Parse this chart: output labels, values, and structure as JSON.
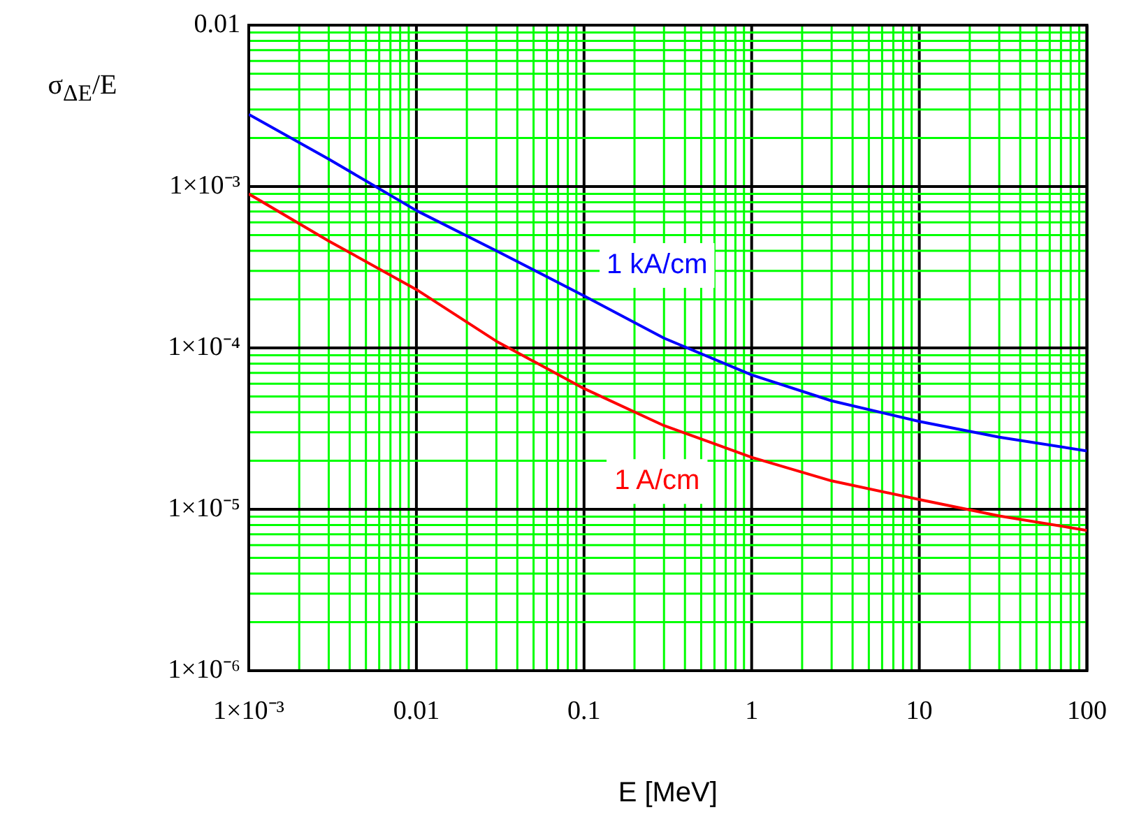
{
  "chart_data": {
    "type": "line",
    "xlabel": "E [MeV]",
    "ylabel": "σ$_{ΔE}$/E",
    "log": "xy",
    "grid": true,
    "legend": false,
    "marker": "none",
    "line_style": "solid",
    "x": [
      0.001,
      0.003,
      0.01,
      0.03,
      0.1,
      0.3,
      1,
      3,
      10,
      30,
      100
    ],
    "xlim": [
      0.001,
      100
    ],
    "xticks": [
      {
        "value": 0.001,
        "label": "1×10⁻³"
      },
      {
        "value": 0.002,
        "label": null
      },
      {
        "value": 0.003,
        "label": null
      },
      {
        "value": 0.004,
        "label": null
      },
      {
        "value": 0.005,
        "label": null
      },
      {
        "value": 0.006,
        "label": null
      },
      {
        "value": 0.007,
        "label": null
      },
      {
        "value": 0.008,
        "label": null
      },
      {
        "value": 0.009,
        "label": null
      },
      0.01,
      {
        "value": 0.02,
        "label": null
      },
      {
        "value": 0.03,
        "label": null
      },
      {
        "value": 0.04,
        "label": null
      },
      {
        "value": 0.05,
        "label": null
      },
      {
        "value": 0.06,
        "label": null
      },
      {
        "value": 0.07,
        "label": null
      },
      {
        "value": 0.08,
        "label": null
      },
      {
        "value": 0.09,
        "label": null
      },
      0.1,
      {
        "value": 0.2,
        "label": null
      },
      {
        "value": 0.3,
        "label": null
      },
      {
        "value": 0.4,
        "label": null
      },
      {
        "value": 0.5,
        "label": null
      },
      {
        "value": 0.6,
        "label": null
      },
      {
        "value": 0.7,
        "label": null
      },
      {
        "value": 0.8,
        "label": null
      },
      {
        "value": 0.9,
        "label": null
      },
      1,
      {
        "value": 2,
        "label": null
      },
      {
        "value": 3,
        "label": null
      },
      {
        "value": 4,
        "label": null
      },
      {
        "value": 5,
        "label": null
      },
      {
        "value": 6,
        "label": null
      },
      {
        "value": 7,
        "label": null
      },
      {
        "value": 8,
        "label": null
      },
      {
        "value": 9,
        "label": null
      },
      10,
      {
        "value": 20,
        "label": null
      },
      {
        "value": 30,
        "label": null
      },
      {
        "value": 40,
        "label": null
      },
      {
        "value": 50,
        "label": null
      },
      {
        "value": 60,
        "label": null
      },
      {
        "value": 70,
        "label": null
      },
      {
        "value": 80,
        "label": null
      },
      {
        "value": 90,
        "label": null
      },
      100
    ],
    "ylim": [
      1e-06,
      0.01
    ],
    "yticks": [
      {
        "value": 1e-06,
        "label": "1×10⁻⁶"
      },
      {
        "value": 2e-06,
        "label": null
      },
      {
        "value": 3e-06,
        "label": null
      },
      {
        "value": 4e-06,
        "label": null
      },
      {
        "value": 5e-06,
        "label": null
      },
      {
        "value": 6e-06,
        "label": null
      },
      {
        "value": 7e-06,
        "label": null
      },
      {
        "value": 8e-06,
        "label": null
      },
      {
        "value": 9e-06,
        "label": null
      },
      {
        "value": 1e-05,
        "label": "1×10⁻⁵"
      },
      {
        "value": 2e-05,
        "label": null
      },
      {
        "value": 3e-05,
        "label": null
      },
      {
        "value": 4e-05,
        "label": null
      },
      {
        "value": 5e-05,
        "label": null
      },
      {
        "value": 6e-05,
        "label": null
      },
      {
        "value": 7e-05,
        "label": null
      },
      {
        "value": 8e-05,
        "label": null
      },
      {
        "value": 9e-05,
        "label": null
      },
      {
        "value": 0.0001,
        "label": "1×10⁻⁴"
      },
      {
        "value": 0.0002,
        "label": null
      },
      {
        "value": 0.0003,
        "label": null
      },
      {
        "value": 0.0004,
        "label": null
      },
      {
        "value": 0.0005,
        "label": null
      },
      {
        "value": 0.0006,
        "label": null
      },
      {
        "value": 0.0007,
        "label": null
      },
      {
        "value": 0.0008,
        "label": null
      },
      {
        "value": 0.0009,
        "label": null
      },
      {
        "value": 0.001,
        "label": "1×10⁻³"
      },
      {
        "value": 0.002,
        "label": null
      },
      {
        "value": 0.003,
        "label": null
      },
      {
        "value": 0.004,
        "label": null
      },
      {
        "value": 0.005,
        "label": null
      },
      {
        "value": 0.006,
        "label": null
      },
      {
        "value": 0.007,
        "label": null
      },
      {
        "value": 0.008,
        "label": null
      },
      {
        "value": 0.009,
        "label": null
      },
      0.01
    ],
    "series": [
      {
        "name": "1 kA/cm",
        "color": "#0000ff",
        "values": [
          0.0028,
          0.00148,
          0.00071,
          0.0004,
          0.00021,
          0.000115,
          6.8e-05,
          4.7e-05,
          3.5e-05,
          2.8e-05,
          2.3e-05
        ]
      },
      {
        "name": "1 A/cm",
        "color": "#ff0000",
        "values": [
          0.0009,
          0.00046,
          0.00023,
          0.00011,
          5.6e-05,
          3.3e-05,
          2.1e-05,
          1.5e-05,
          1.15e-05,
          9.1e-06,
          7.4e-06
        ]
      }
    ]
  }
}
